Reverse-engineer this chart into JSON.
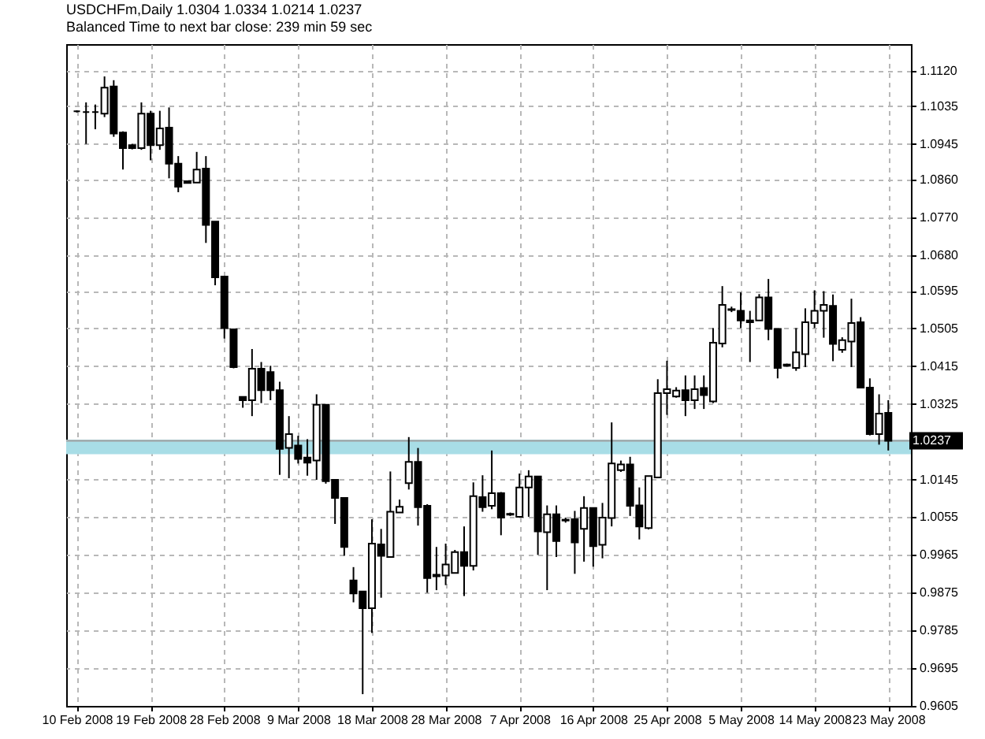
{
  "chart_data": {
    "type": "candlestick",
    "title": "USDCHFm,Daily  1.0304 1.0334 1.0214 1.0237",
    "subtitle": "Balanced Time to next bar close: 239 min 59 sec",
    "categories": [
      "10 Feb 2008",
      null,
      null,
      null,
      null,
      null,
      null,
      null,
      "19 Feb 2008",
      null,
      null,
      null,
      null,
      null,
      null,
      null,
      "28 Feb 2008",
      null,
      null,
      null,
      null,
      null,
      null,
      null,
      "9 Mar 2008",
      null,
      null,
      null,
      null,
      null,
      null,
      null,
      "18 Mar 2008",
      null,
      null,
      null,
      null,
      null,
      null,
      null,
      "28 Mar 2008",
      null,
      null,
      null,
      null,
      null,
      null,
      null,
      "7 Apr 2008",
      null,
      null,
      null,
      null,
      null,
      null,
      null,
      "16 Apr 2008",
      null,
      null,
      null,
      null,
      null,
      null,
      null,
      "25 Apr 2008",
      null,
      null,
      null,
      null,
      null,
      null,
      null,
      "5 May 2008",
      null,
      null,
      null,
      null,
      null,
      null,
      null,
      "14 May 2008",
      null,
      null,
      null,
      null,
      null,
      null,
      null,
      "23 May 2008"
    ],
    "ohlc": [
      [
        1.1023,
        1.1025,
        1.102,
        1.1023
      ],
      [
        1.1021,
        1.1044,
        1.0945,
        1.1021
      ],
      [
        1.1021,
        1.1039,
        1.098,
        1.1021
      ],
      [
        1.1017,
        1.1106,
        1.1009,
        1.1079
      ],
      [
        1.1082,
        1.1097,
        1.0962,
        1.097
      ],
      [
        1.0972,
        1.0975,
        1.0884,
        1.0935
      ],
      [
        1.0942,
        1.0945,
        1.0932,
        1.0935
      ],
      [
        1.0935,
        1.1044,
        1.0931,
        1.1017
      ],
      [
        1.1017,
        1.1024,
        1.0906,
        1.0942
      ],
      [
        1.0942,
        1.1024,
        1.0931,
        1.0982
      ],
      [
        1.0984,
        1.1032,
        1.0863,
        1.0898
      ],
      [
        1.0898,
        1.0916,
        1.083,
        1.0843
      ],
      [
        1.0856,
        1.0857,
        1.0851,
        1.0852
      ],
      [
        1.0853,
        1.0926,
        1.0853,
        1.0884
      ],
      [
        1.0886,
        1.0916,
        1.0709,
        1.0752
      ],
      [
        1.076,
        1.076,
        1.0608,
        1.0627
      ],
      [
        1.0629,
        1.0629,
        1.0481,
        1.0506
      ],
      [
        1.0503,
        1.0503,
        1.041,
        1.0413
      ],
      [
        1.0342,
        1.0343,
        1.0316,
        1.0334
      ],
      [
        1.0334,
        1.0456,
        1.0296,
        1.0409
      ],
      [
        1.0409,
        1.0425,
        1.0327,
        1.0358
      ],
      [
        1.0401,
        1.0416,
        1.0334,
        1.0358
      ],
      [
        1.0358,
        1.0378,
        1.0156,
        1.0218
      ],
      [
        1.022,
        1.0296,
        1.0148,
        1.0253
      ],
      [
        1.0226,
        1.0249,
        1.0183,
        1.0194
      ],
      [
        1.0197,
        1.0241,
        1.0154,
        1.0185
      ],
      [
        1.019,
        1.0348,
        1.0144,
        1.0323
      ],
      [
        1.0323,
        1.0323,
        1.0135,
        1.0141
      ],
      [
        1.0144,
        1.0144,
        1.0039,
        1.0101
      ],
      [
        1.0101,
        1.0101,
        0.9963,
        0.9984
      ],
      [
        0.9904,
        0.9936,
        0.9852,
        0.9873
      ],
      [
        0.9878,
        0.9878,
        0.9633,
        0.9838
      ],
      [
        0.9838,
        1.005,
        0.9779,
        0.9992
      ],
      [
        0.999,
        1.0027,
        0.9863,
        0.9963
      ],
      [
        0.996,
        1.0164,
        0.996,
        1.0068
      ],
      [
        1.0066,
        1.0097,
        1.0066,
        1.008
      ],
      [
        1.0136,
        1.0246,
        1.0121,
        1.0187
      ],
      [
        1.0187,
        1.022,
        1.0035,
        1.0079
      ],
      [
        1.0082,
        1.0086,
        0.9875,
        0.991
      ],
      [
        0.9918,
        0.9984,
        0.9881,
        0.9914
      ],
      [
        0.9916,
        0.9992,
        0.9893,
        0.9942
      ],
      [
        0.9922,
        0.9977,
        0.9922,
        0.9972
      ],
      [
        0.9972,
        1.0033,
        0.9867,
        0.9939
      ],
      [
        0.9939,
        1.0138,
        0.9928,
        1.0105
      ],
      [
        1.0103,
        1.0155,
        1.0068,
        1.0079
      ],
      [
        1.0082,
        1.0214,
        1.0074,
        1.0112
      ],
      [
        1.0112,
        1.0115,
        1.0012,
        1.0054
      ],
      [
        1.0063,
        1.0066,
        1.0058,
        1.0061
      ],
      [
        1.0056,
        1.0159,
        1.0056,
        1.0126
      ],
      [
        1.0126,
        1.0167,
        1.0056,
        1.0152
      ],
      [
        1.0152,
        1.0152,
        0.9965,
        1.0021
      ],
      [
        1.0019,
        1.0083,
        0.9881,
        1.0062
      ],
      [
        1.0062,
        1.0083,
        0.996,
        0.9998
      ],
      [
        1.0049,
        1.0054,
        1.0042,
        1.0047
      ],
      [
        1.005,
        1.007,
        0.992,
        0.9995
      ],
      [
        1.0027,
        1.0105,
        0.9949,
        1.0077
      ],
      [
        1.0077,
        1.0077,
        0.9937,
        0.9986
      ],
      [
        0.9989,
        1.0089,
        0.9957,
        1.0054
      ],
      [
        1.0053,
        1.0281,
        1.0033,
        1.0183
      ],
      [
        1.0167,
        1.019,
        1.0163,
        1.0181
      ],
      [
        1.0181,
        1.0199,
        1.0058,
        1.0082
      ],
      [
        1.0083,
        1.0126,
        1.0002,
        1.0033
      ],
      [
        1.0029,
        1.0153,
        1.0026,
        1.0153
      ],
      [
        1.015,
        1.0384,
        1.015,
        1.0351
      ],
      [
        1.0351,
        1.0428,
        1.0299,
        1.036
      ],
      [
        1.0343,
        1.0365,
        1.034,
        1.0357
      ],
      [
        1.0358,
        1.0393,
        1.0296,
        1.0334
      ],
      [
        1.0334,
        1.0393,
        1.0313,
        1.036
      ],
      [
        1.0363,
        1.0393,
        1.0313,
        1.0346
      ],
      [
        1.0331,
        1.0506,
        1.0327,
        1.0471
      ],
      [
        1.0469,
        1.0606,
        1.046,
        1.0561
      ],
      [
        1.0551,
        1.0557,
        1.0544,
        1.0549
      ],
      [
        1.0547,
        1.0591,
        1.0506,
        1.0524
      ],
      [
        1.0524,
        1.0547,
        1.0425,
        1.052
      ],
      [
        1.0524,
        1.0587,
        1.0524,
        1.0579
      ],
      [
        1.0579,
        1.0623,
        1.0477,
        1.0504
      ],
      [
        1.0504,
        1.0504,
        1.0386,
        1.0411
      ],
      [
        1.0419,
        1.0421,
        1.0414,
        1.0416
      ],
      [
        1.0411,
        1.0506,
        1.0404,
        1.0448
      ],
      [
        1.0444,
        1.0553,
        1.0413,
        1.052
      ],
      [
        1.0518,
        1.0596,
        1.0506,
        1.0547
      ],
      [
        1.0547,
        1.0594,
        1.0483,
        1.0561
      ],
      [
        1.0559,
        1.0586,
        1.0427,
        1.0468
      ],
      [
        1.0454,
        1.0484,
        1.0447,
        1.0477
      ],
      [
        1.0474,
        1.0576,
        1.0413,
        1.0518
      ],
      [
        1.052,
        1.0532,
        1.0364,
        1.0364
      ],
      [
        1.0364,
        1.0386,
        1.025,
        1.0253
      ],
      [
        1.0253,
        1.0348,
        1.0228,
        1.0302
      ],
      [
        1.0304,
        1.0334,
        1.0214,
        1.0237
      ]
    ],
    "ylim": [
      0.9605,
      1.1183
    ],
    "yticks": [
      {
        "value": 1.112,
        "label": "1.1120"
      },
      1.1035,
      1.0945,
      {
        "value": 1.086,
        "label": "1.0860"
      },
      {
        "value": 1.077,
        "label": "1.0770"
      },
      {
        "value": 1.068,
        "label": "1.0680"
      },
      1.0595,
      1.0505,
      1.0415,
      1.0325,
      1.0145,
      1.0055,
      0.9965,
      0.9875,
      0.9785,
      0.9695,
      0.9605
    ],
    "grid": true,
    "bands": [
      {
        "axis": "y",
        "from": 1.0205,
        "to": 1.024,
        "color": "#a8dde6"
      }
    ],
    "ref_lines": [
      {
        "axis": "y",
        "value": 1.0237,
        "label": "1.0237",
        "color": "#a0a0a0"
      }
    ]
  }
}
